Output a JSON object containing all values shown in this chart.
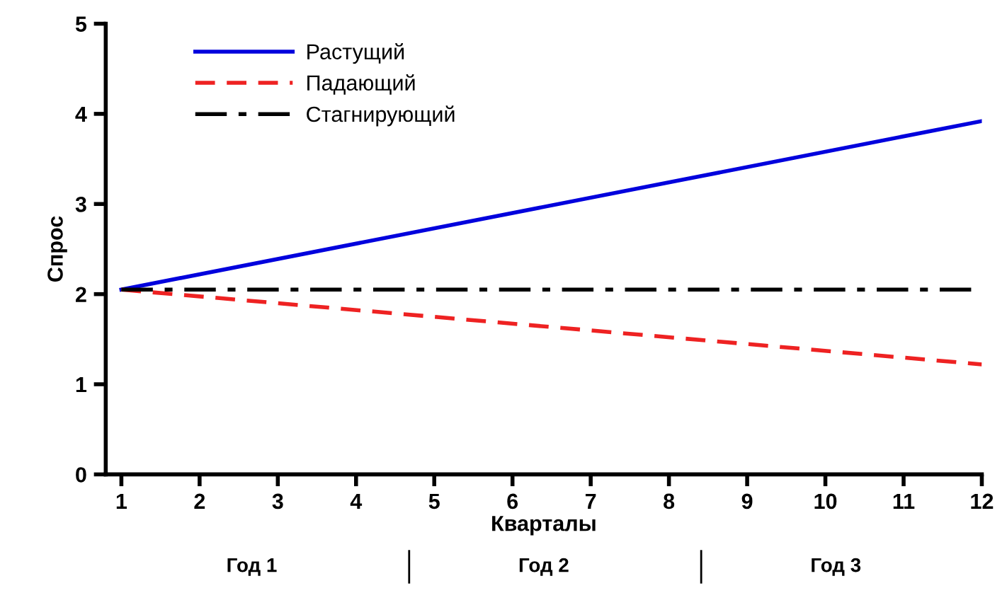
{
  "chart_data": {
    "type": "line",
    "xlabel": "Кварталы",
    "ylabel": "Спрос",
    "x": [
      1,
      12
    ],
    "series": [
      {
        "name": "Растущий",
        "color": "#0000dd",
        "values": [
          2.05,
          3.92
        ],
        "line_style": "solid"
      },
      {
        "name": "Падающий",
        "color": "#ee2222",
        "values": [
          2.05,
          1.22
        ],
        "line_style": "dashed"
      },
      {
        "name": "Стагнирующий",
        "color": "#000000",
        "values": [
          2.05,
          2.05
        ],
        "line_style": "dashdot"
      }
    ],
    "xlim": [
      0.8,
      12
    ],
    "ylim": [
      0,
      5
    ],
    "xticks": [
      1,
      2,
      3,
      4,
      5,
      6,
      7,
      8,
      9,
      10,
      11,
      12
    ],
    "yticks": [
      0,
      1,
      2,
      3,
      4,
      5
    ],
    "grid": false,
    "legend": "top left",
    "marker": "none",
    "annotations": [
      "Год 1",
      "Год 2",
      "Год 3"
    ]
  }
}
